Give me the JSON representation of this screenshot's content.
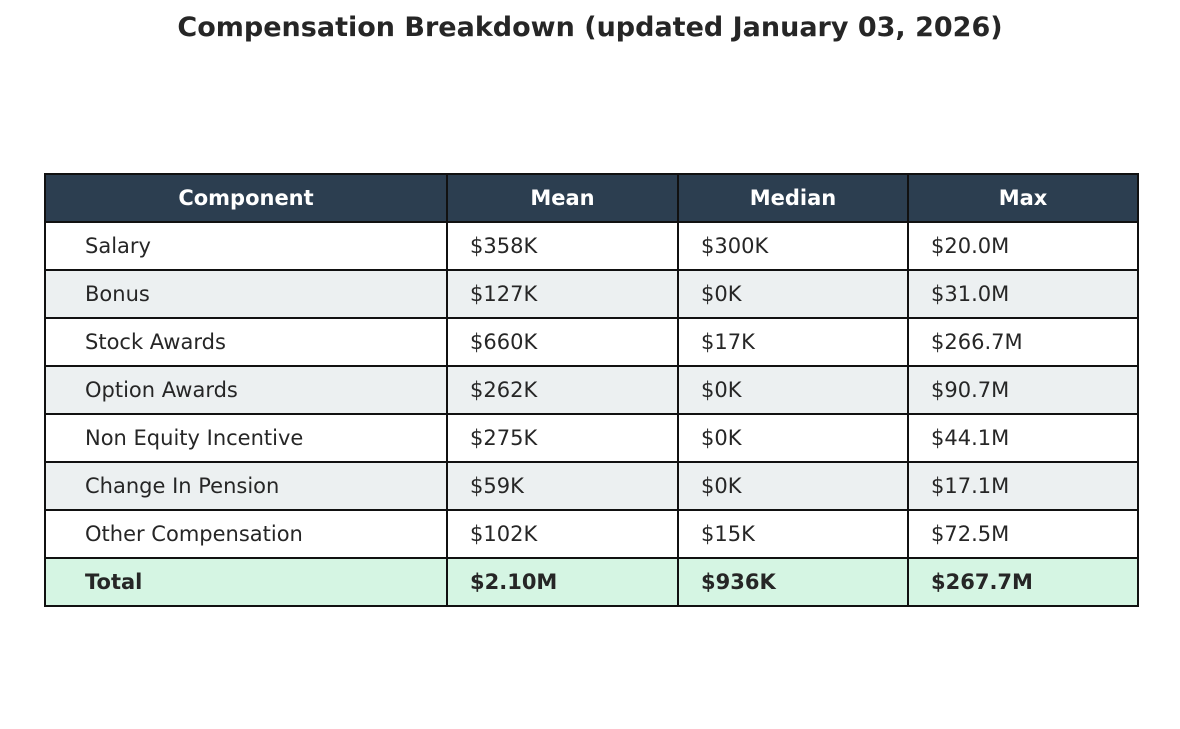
{
  "chart_data": {
    "type": "table",
    "title": "Compensation Breakdown (updated January 03, 2026)",
    "columns": [
      "Component",
      "Mean",
      "Median",
      "Max"
    ],
    "rows": [
      [
        "Salary",
        "$358K",
        "$300K",
        "$20.0M"
      ],
      [
        "Bonus",
        "$127K",
        "$0K",
        "$31.0M"
      ],
      [
        "Stock Awards",
        "$660K",
        "$17K",
        "$266.7M"
      ],
      [
        "Option Awards",
        "$262K",
        "$0K",
        "$90.7M"
      ],
      [
        "Non Equity Incentive",
        "$275K",
        "$0K",
        "$44.1M"
      ],
      [
        "Change In Pension",
        "$59K",
        "$0K",
        "$17.1M"
      ],
      [
        "Other Compensation",
        "$102K",
        "$15K",
        "$72.5M"
      ]
    ],
    "total": [
      "Total",
      "$2.10M",
      "$936K",
      "$267.7M"
    ],
    "colors": {
      "header_bg": "#2c3e50",
      "header_text": "#ffffff",
      "row_alt_bg": "#ecf0f1",
      "total_bg": "#d5f5e3",
      "border": "#111111"
    }
  }
}
